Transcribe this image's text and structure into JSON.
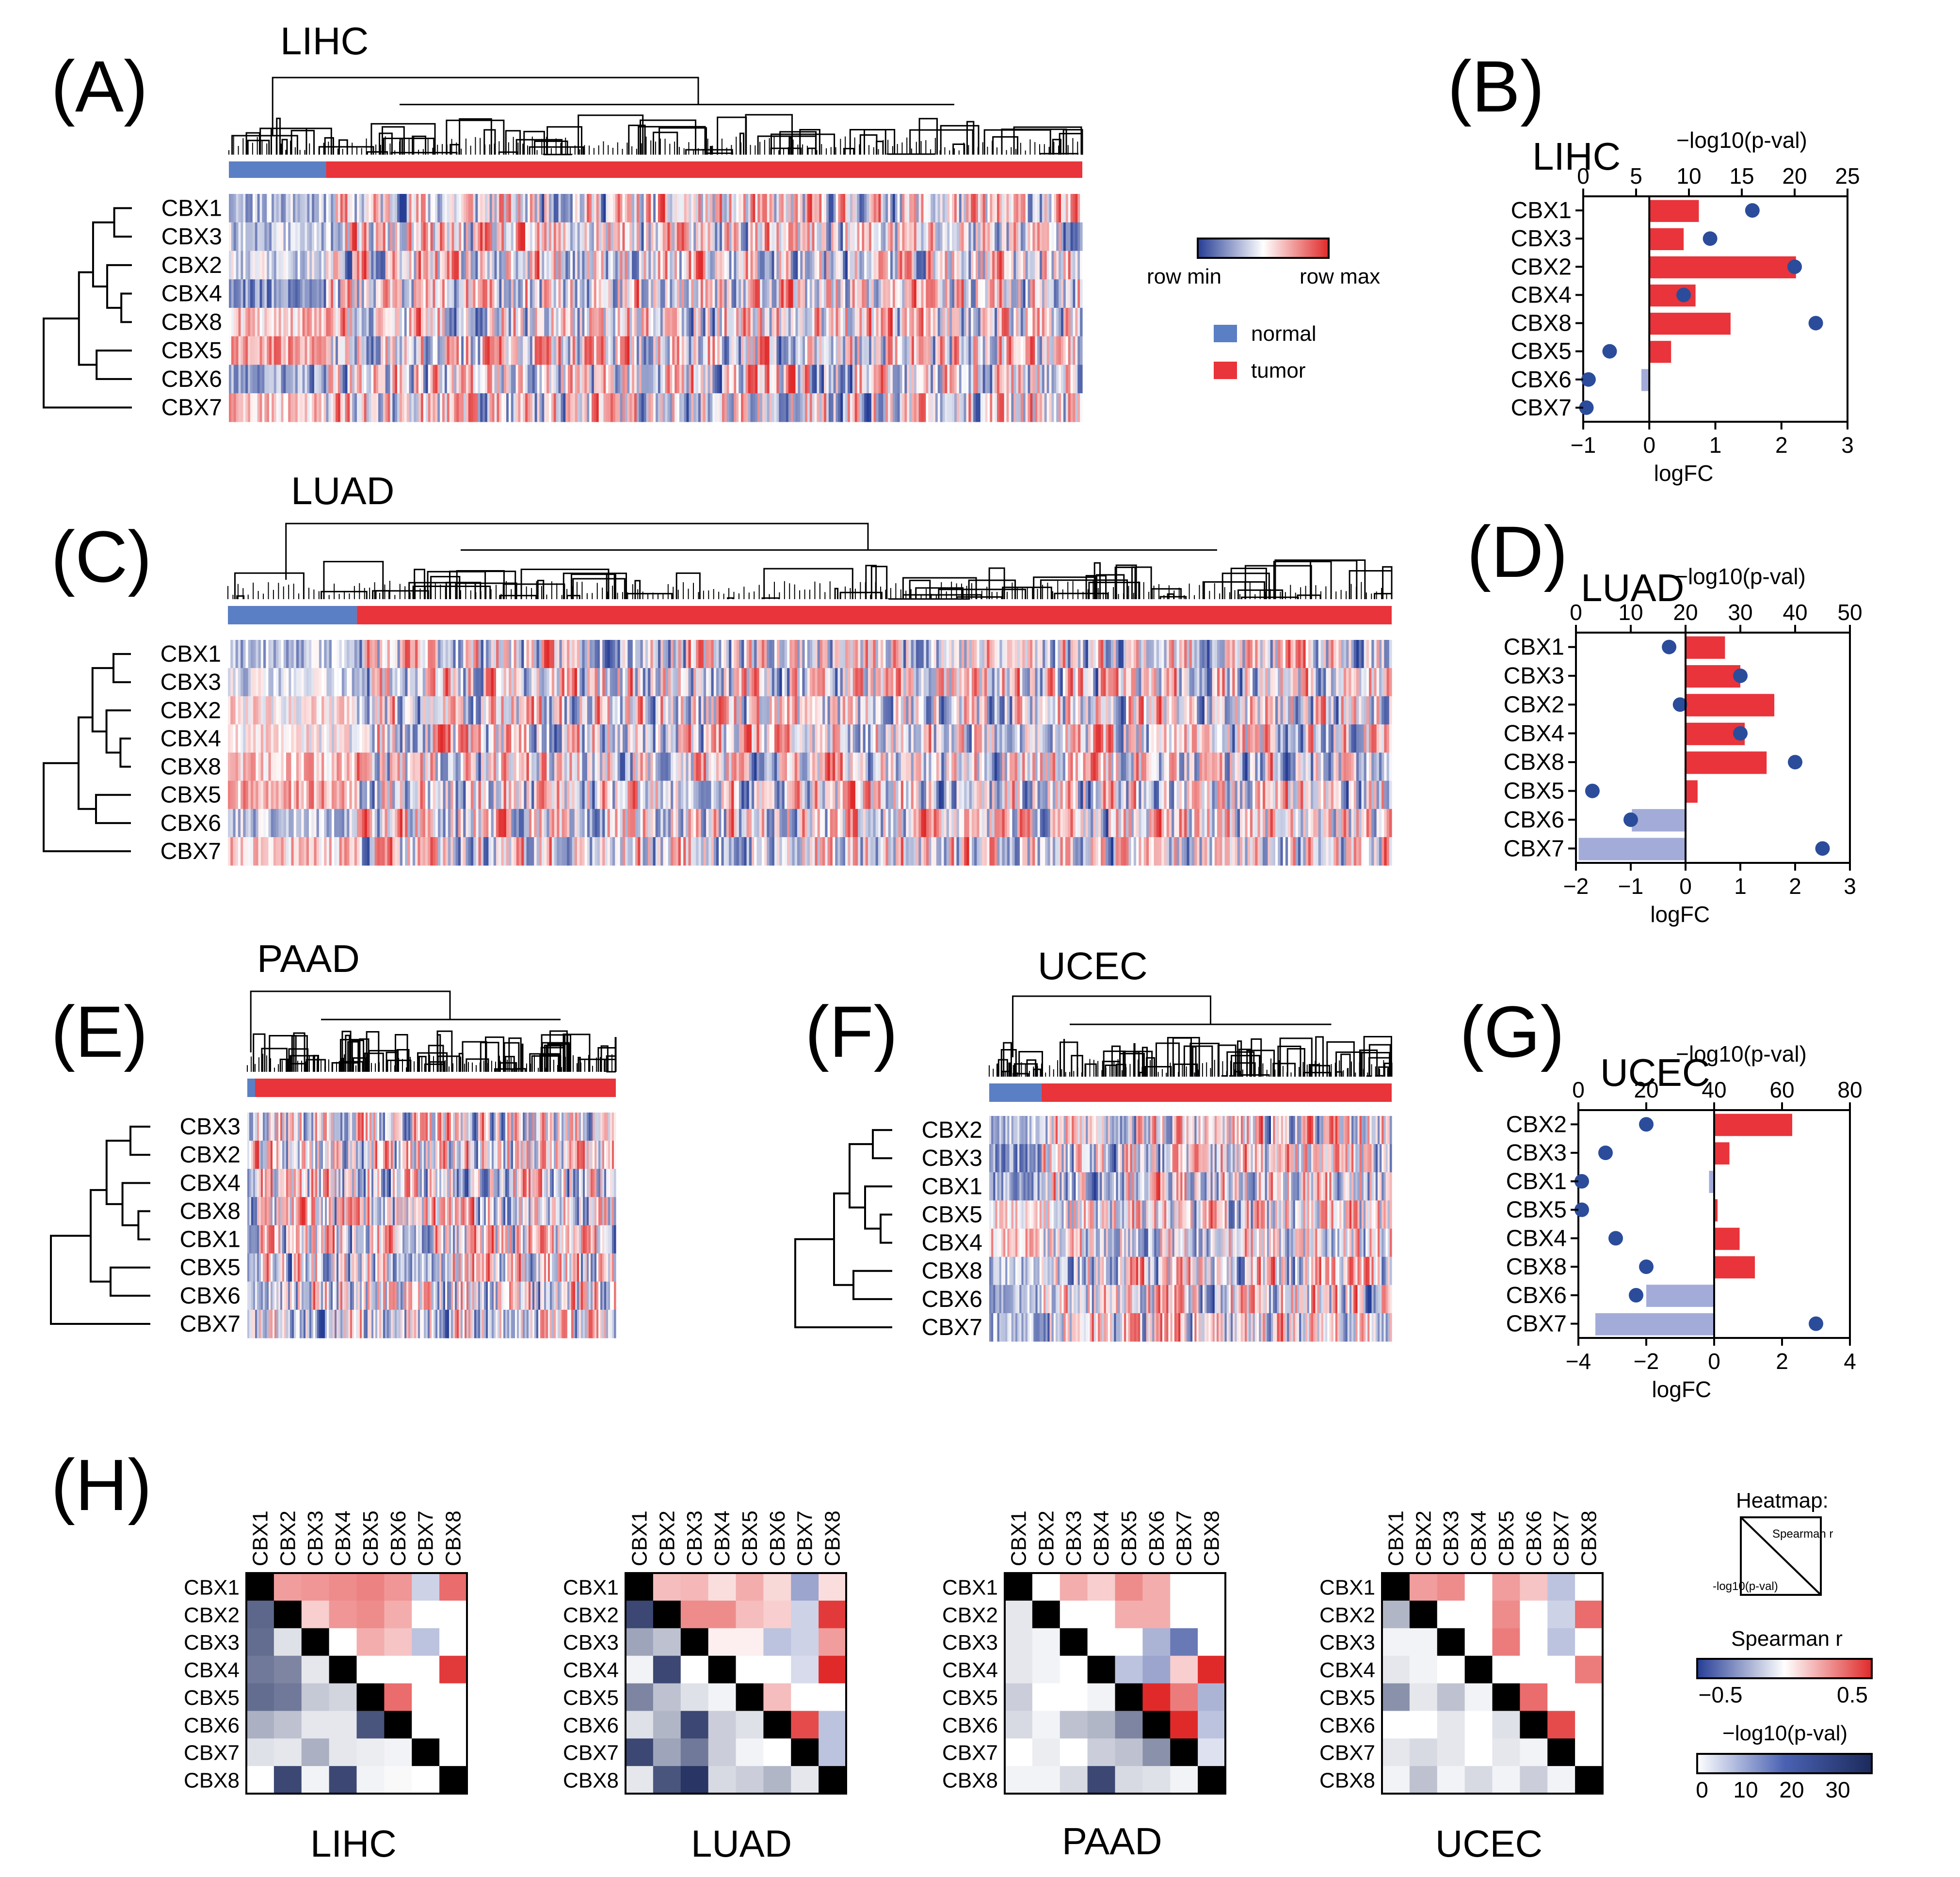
{
  "colors": {
    "tumor": "#e8343a",
    "normal": "#5b7fc4",
    "neg_bar": "#a3acd9",
    "dot": "#2b4c9b",
    "blue_dark": "#263d95",
    "red_dark": "#e02a2a",
    "pval_dark": "#1c2a5c",
    "diag": "#000000"
  },
  "panel_A": {
    "letter": "(A)",
    "title": "LIHC",
    "genes": [
      "CBX1",
      "CBX3",
      "CBX2",
      "CBX4",
      "CBX8",
      "CBX5",
      "CBX6",
      "CBX7"
    ],
    "normal_fraction": 0.115
  },
  "panel_C": {
    "letter": "(C)",
    "title": "LUAD",
    "genes": [
      "CBX1",
      "CBX3",
      "CBX2",
      "CBX4",
      "CBX8",
      "CBX5",
      "CBX6",
      "CBX7"
    ],
    "normal_fraction": 0.11
  },
  "panel_E": {
    "letter": "(E)",
    "title": "PAAD",
    "genes": [
      "CBX3",
      "CBX2",
      "CBX4",
      "CBX8",
      "CBX1",
      "CBX5",
      "CBX6",
      "CBX7"
    ],
    "normal_fraction": 0.02
  },
  "panel_F": {
    "letter": "(F)",
    "title": "UCEC",
    "genes": [
      "CBX2",
      "CBX3",
      "CBX1",
      "CBX5",
      "CBX4",
      "CBX8",
      "CBX6",
      "CBX7"
    ],
    "normal_fraction": 0.13
  },
  "legend": {
    "row_min": "row min",
    "row_max": "row max",
    "normal": "normal",
    "tumor": "tumor"
  },
  "chart_data": [
    {
      "panel": "(B)",
      "title": "LIHC",
      "type": "bar",
      "categories": [
        "CBX1",
        "CBX3",
        "CBX2",
        "CBX4",
        "CBX8",
        "CBX5",
        "CBX6",
        "CBX7"
      ],
      "logFC": [
        0.75,
        0.52,
        2.22,
        0.7,
        1.23,
        0.33,
        -0.12,
        0.0
      ],
      "neglog10p": [
        16.0,
        12.0,
        20.0,
        9.5,
        22.0,
        2.5,
        0.5,
        0.3
      ],
      "xlabel": "logFC",
      "x2label": "−log10(p-val)",
      "xlim": [
        -1,
        3
      ],
      "x2lim": [
        0,
        25
      ],
      "xticks": [
        -1,
        0,
        1,
        2,
        3
      ],
      "x2ticks": [
        0,
        5,
        10,
        15,
        20,
        25
      ]
    },
    {
      "panel": "(D)",
      "title": "LUAD",
      "type": "bar",
      "categories": [
        "CBX1",
        "CBX3",
        "CBX2",
        "CBX4",
        "CBX8",
        "CBX5",
        "CBX6",
        "CBX7"
      ],
      "logFC": [
        0.72,
        1.0,
        1.62,
        1.08,
        1.48,
        0.22,
        -0.98,
        -1.95
      ],
      "neglog10p": [
        17.0,
        30.0,
        19.0,
        30.0,
        40.0,
        3.0,
        10.0,
        45.0
      ],
      "xlabel": "logFC",
      "x2label": "−log10(p-val)",
      "xlim": [
        -2,
        3
      ],
      "x2lim": [
        0,
        50
      ],
      "xticks": [
        -2,
        -1,
        0,
        1,
        2,
        3
      ],
      "x2ticks": [
        0,
        10,
        20,
        30,
        40,
        50
      ]
    },
    {
      "panel": "(G)",
      "title": "UCEC",
      "type": "bar",
      "categories": [
        "CBX2",
        "CBX3",
        "CBX1",
        "CBX5",
        "CBX4",
        "CBX8",
        "CBX6",
        "CBX7"
      ],
      "logFC": [
        2.3,
        0.45,
        -0.15,
        0.1,
        0.75,
        1.2,
        -2.0,
        -3.5
      ],
      "neglog10p": [
        20.0,
        8.0,
        1.0,
        1.0,
        11.0,
        20.0,
        17.0,
        70.0
      ],
      "xlabel": "logFC",
      "x2label": "−log10(p-val)",
      "xlim": [
        -4,
        4
      ],
      "x2lim": [
        0,
        80
      ],
      "xticks": [
        -4,
        -2,
        0,
        2,
        4
      ],
      "x2ticks": [
        0,
        20,
        40,
        60,
        80
      ]
    },
    {
      "panel": "(H)",
      "type": "heatmap",
      "genes": [
        "CBX1",
        "CBX2",
        "CBX3",
        "CBX4",
        "CBX5",
        "CBX6",
        "CBX7",
        "CBX8"
      ],
      "encoding_upper": "Spearman r",
      "encoding_lower": "-log10(p-val)",
      "datasets": [
        {
          "name": "LIHC",
          "matrix": [
            [
              null,
              0.3,
              0.32,
              0.35,
              0.38,
              0.32,
              -0.15,
              0.45
            ],
            [
              25,
              null,
              0.15,
              0.32,
              0.35,
              0.25,
              0,
              0
            ],
            [
              24,
              5,
              null,
              0,
              0.25,
              0.18,
              -0.2,
              0
            ],
            [
              22,
              20,
              4,
              null,
              0,
              0,
              0,
              0.6
            ],
            [
              24,
              22,
              9,
              7,
              null,
              0.45,
              0,
              0
            ],
            [
              13,
              10,
              4,
              4,
              28,
              null,
              0,
              0
            ],
            [
              5,
              4,
              13,
              4,
              3,
              2,
              null,
              0
            ],
            [
              0,
              30,
              2,
              30,
              2,
              1,
              0,
              null
            ]
          ]
        },
        {
          "name": "LUAD",
          "matrix": [
            [
              null,
              0.2,
              0.22,
              0.1,
              0.25,
              0.12,
              -0.3,
              0.1
            ],
            [
              30,
              null,
              0.35,
              0.35,
              0.2,
              0.15,
              -0.15,
              0.6
            ],
            [
              15,
              10,
              null,
              0.05,
              0.05,
              -0.2,
              -0.15,
              0.3
            ],
            [
              2,
              30,
              0,
              null,
              0,
              0,
              -0.12,
              0.65
            ],
            [
              20,
              10,
              5,
              2,
              null,
              0.2,
              0,
              0
            ],
            [
              5,
              12,
              30,
              8,
              5,
              null,
              0.55,
              -0.2
            ],
            [
              30,
              15,
              22,
              8,
              2,
              0,
              null,
              -0.2
            ],
            [
              4,
              28,
              33,
              6,
              8,
              12,
              4,
              null
            ]
          ]
        },
        {
          "name": "PAAD",
          "matrix": [
            [
              null,
              0,
              0.25,
              0.15,
              0.35,
              0.25,
              0,
              0
            ],
            [
              4,
              null,
              0,
              0,
              0.25,
              0.25,
              0,
              0
            ],
            [
              4,
              2,
              null,
              0,
              0,
              -0.25,
              -0.45,
              0
            ],
            [
              4,
              2,
              0,
              null,
              -0.2,
              -0.3,
              0.15,
              0.7
            ],
            [
              8,
              0,
              0,
              2,
              null,
              0.65,
              0.4,
              -0.25
            ],
            [
              6,
              2,
              10,
              12,
              20,
              null,
              0.8,
              -0.2
            ],
            [
              0,
              3,
              0,
              8,
              10,
              18,
              null,
              -0.1
            ],
            [
              2,
              2,
              6,
              30,
              6,
              5,
              2,
              null
            ]
          ]
        },
        {
          "name": "UCEC",
          "matrix": [
            [
              null,
              0.3,
              0.35,
              0,
              0.3,
              0.18,
              -0.2,
              0
            ],
            [
              12,
              null,
              0,
              0,
              0.35,
              0,
              -0.15,
              0.45
            ],
            [
              2,
              2,
              null,
              0,
              0.4,
              0,
              -0.2,
              0
            ],
            [
              4,
              2,
              0,
              null,
              0,
              0,
              0,
              0.4
            ],
            [
              18,
              4,
              10,
              2,
              null,
              0.45,
              0,
              0
            ],
            [
              0,
              0,
              4,
              0,
              5,
              null,
              0.55,
              0
            ],
            [
              4,
              6,
              4,
              0,
              4,
              2,
              null,
              0
            ],
            [
              2,
              10,
              2,
              6,
              2,
              8,
              2,
              null
            ]
          ]
        }
      ]
    }
  ],
  "panel_H": {
    "letter": "(H)",
    "legend_heatmap_title": "Heatmap:",
    "legend_spearman": "Spearman r",
    "legend_pval": "-log10(p-val)",
    "spearman_title": "Spearman r",
    "spearman_ticks": [
      "−0.5",
      "0.5"
    ],
    "pval_title": "−log10(p-val)",
    "pval_ticks": [
      "0",
      "10",
      "20",
      "30"
    ]
  }
}
